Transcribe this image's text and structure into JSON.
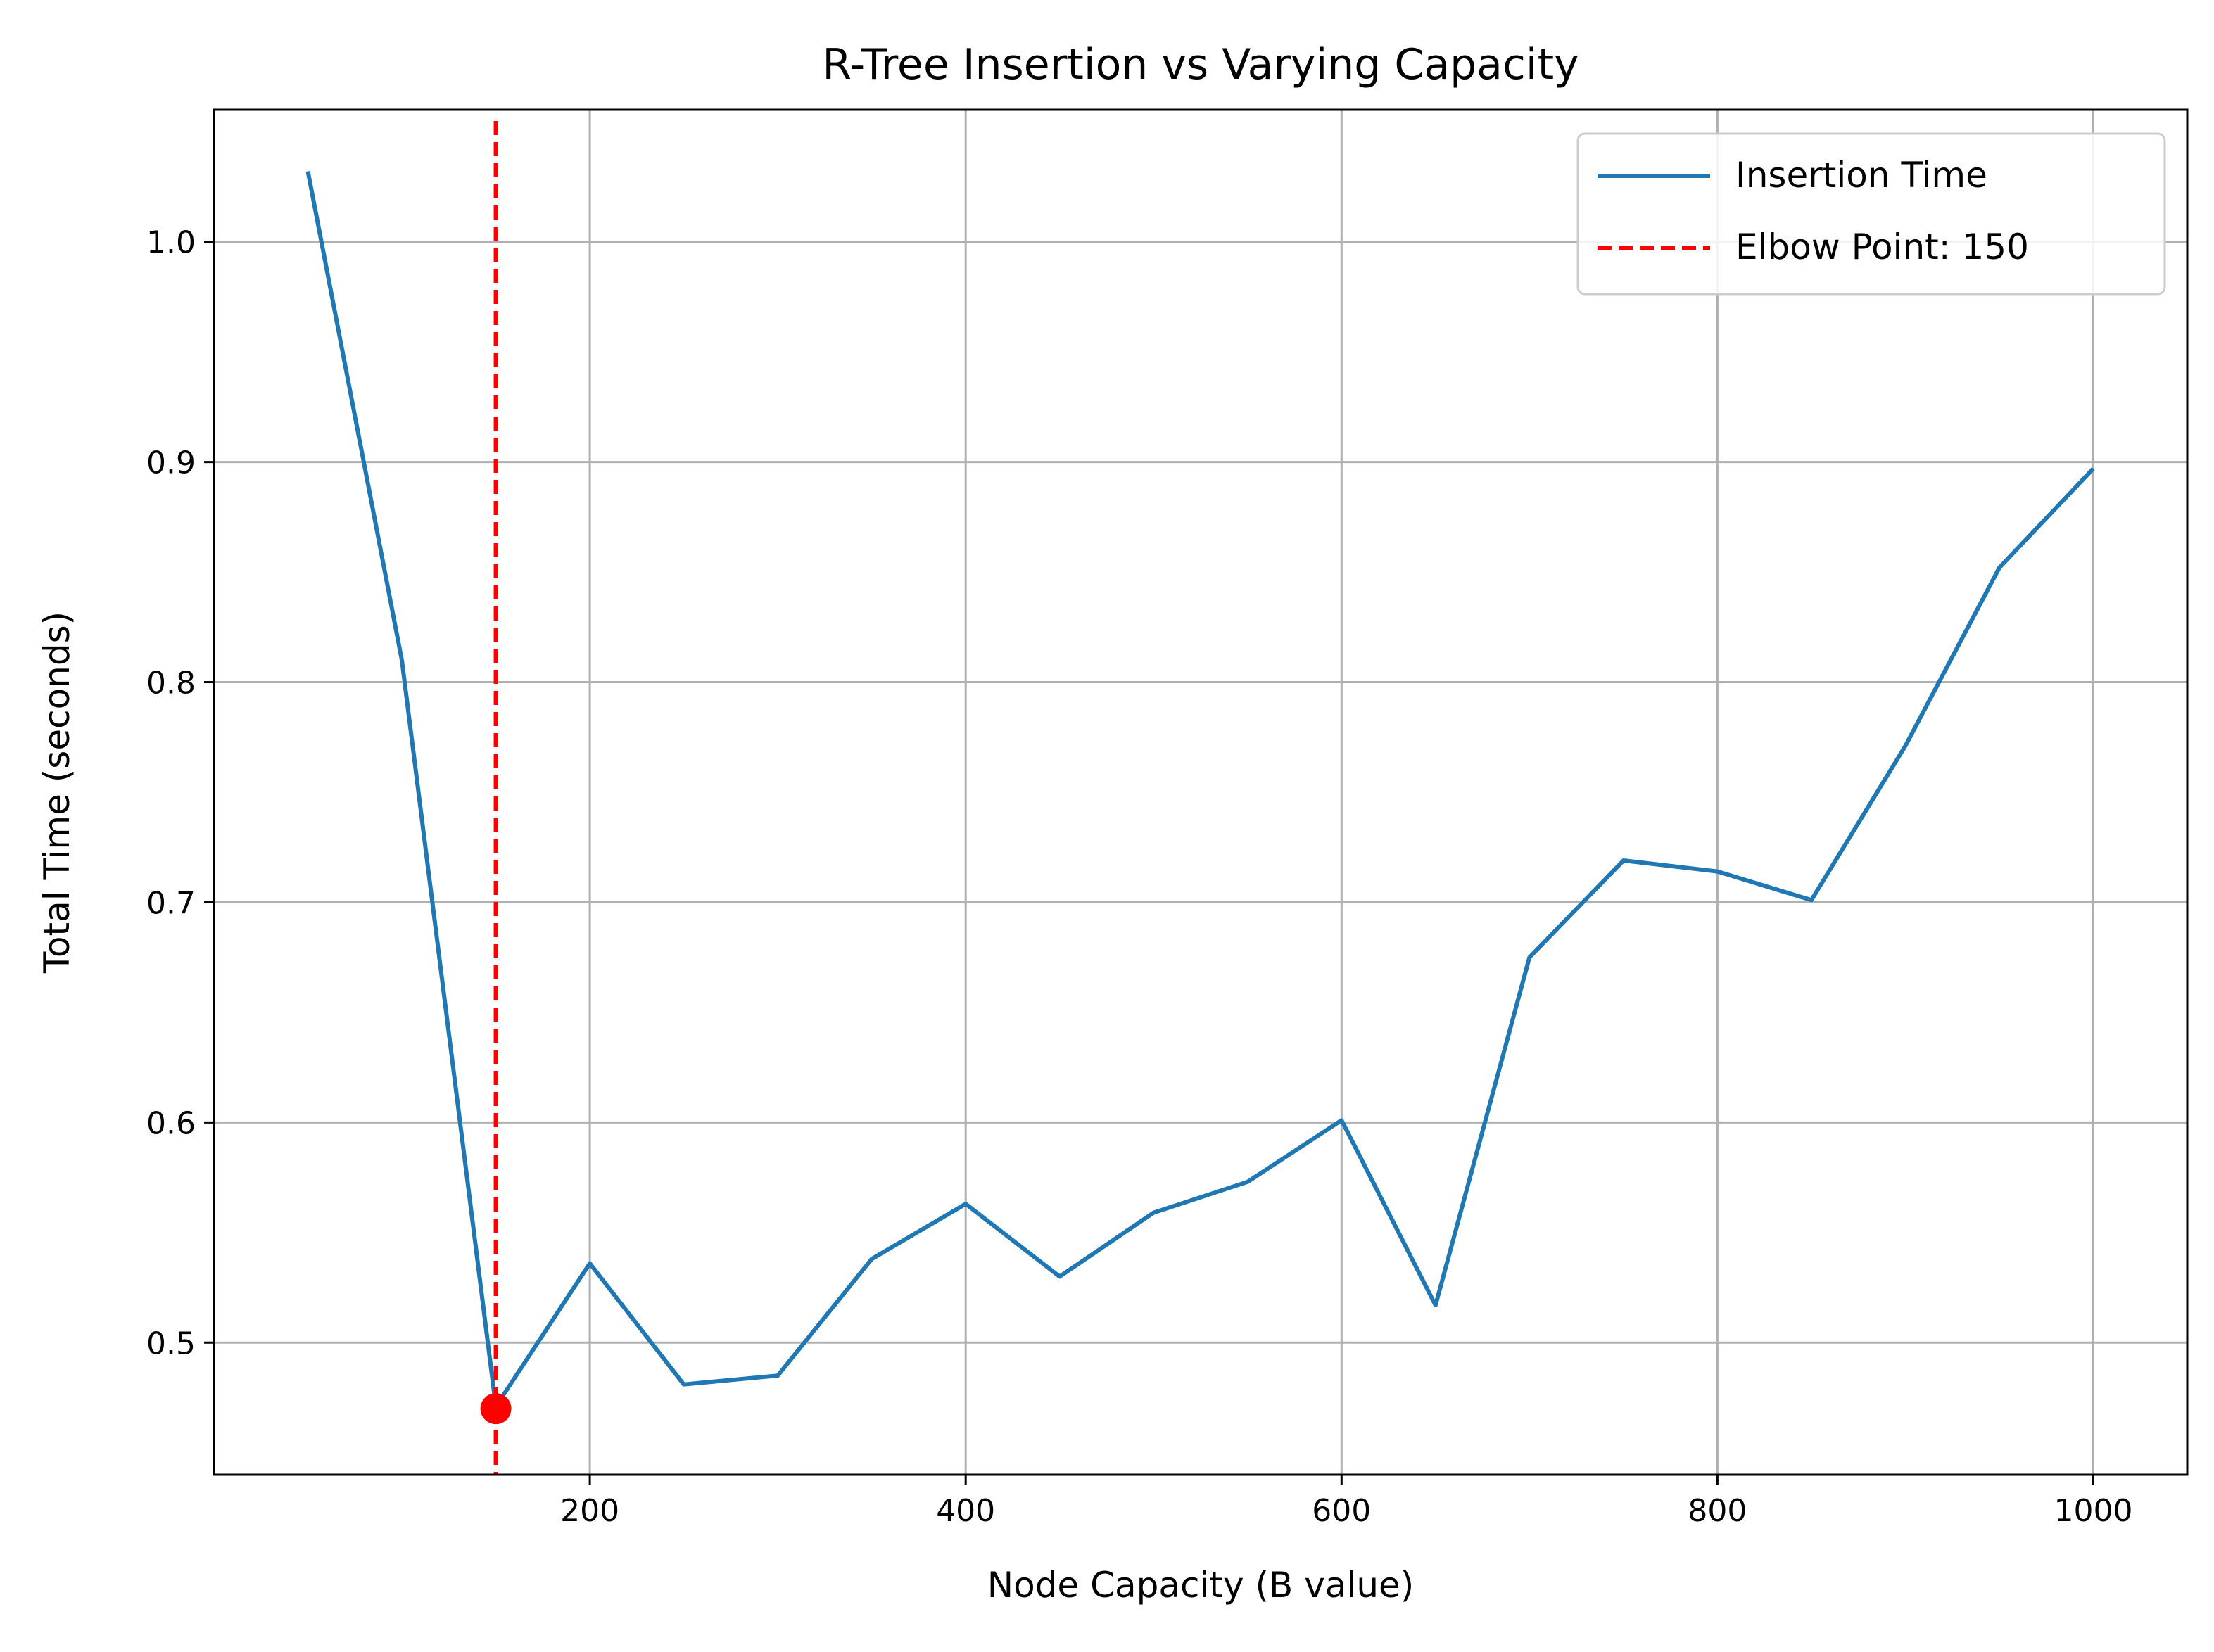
{
  "chart_data": {
    "type": "line",
    "title": "R-Tree Insertion vs Varying Capacity",
    "xlabel": "Node Capacity (B value)",
    "ylabel": "Total Time (seconds)",
    "xlim": [
      0,
      1050
    ],
    "ylim": [
      0.44,
      1.06
    ],
    "xticks": [
      200,
      400,
      600,
      800,
      1000
    ],
    "xtick_labels": [
      "200",
      "400",
      "600",
      "800",
      "1000"
    ],
    "yticks": [
      0.5,
      0.6,
      0.7,
      0.8,
      0.9,
      1.0
    ],
    "ytick_labels": [
      "0.5",
      "0.6",
      "0.7",
      "0.8",
      "0.9",
      "1.0"
    ],
    "grid": true,
    "legend_position": "top-right",
    "series": [
      {
        "name": "Insertion Time",
        "color": "#1f77b4",
        "style": "solid",
        "x": [
          50,
          100,
          150,
          200,
          250,
          300,
          350,
          400,
          450,
          500,
          550,
          600,
          650,
          700,
          750,
          800,
          850,
          900,
          950,
          1000
        ],
        "y": [
          1.032,
          0.81,
          0.471,
          0.536,
          0.481,
          0.485,
          0.538,
          0.563,
          0.53,
          0.559,
          0.573,
          0.601,
          0.517,
          0.675,
          0.719,
          0.714,
          0.701,
          0.771,
          0.852,
          0.897
        ]
      }
    ],
    "elbow": {
      "name": "Elbow Point: 150",
      "x": 150,
      "y": 0.47,
      "color": "#ff0000",
      "style": "dashed"
    }
  }
}
